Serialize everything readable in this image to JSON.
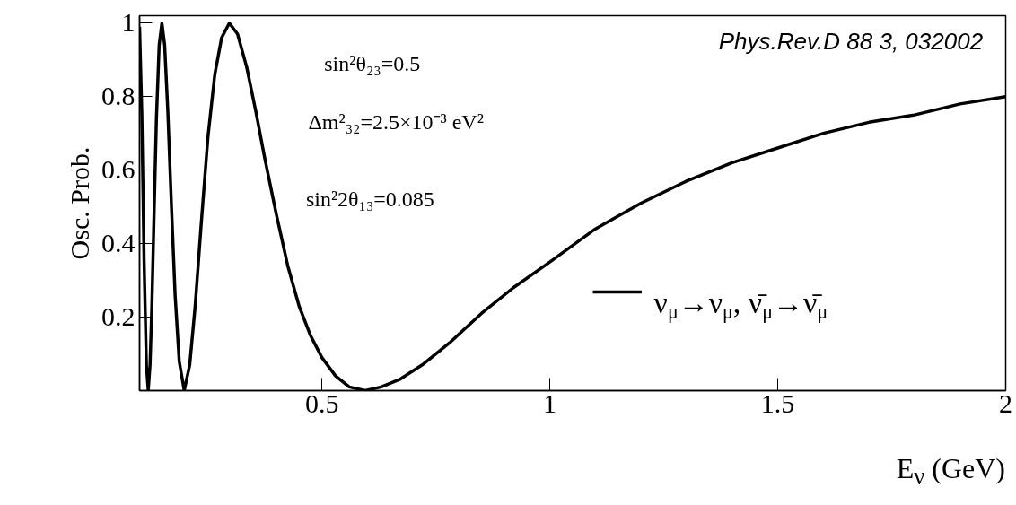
{
  "chart_data": {
    "type": "line",
    "xlabel": "E$_{ν}$ (GeV)",
    "ylabel": "Osc. Prob.",
    "xlim": [
      0.1,
      2
    ],
    "ylim": [
      0,
      1.02
    ],
    "xticks": [
      0.5,
      1,
      1.5,
      2
    ],
    "yticks": [
      {
        "value": 0,
        "label": null
      },
      0.2,
      0.4,
      0.6,
      0.8,
      1
    ],
    "legend": "bottom right",
    "annotations": [
      "sin²θ₂₃=0.5",
      "Δm²₃₂=2.5×10⁻³ eV²",
      "sin²2θ₁₃=0.085",
      "Phys.Rev.D 88 3, 032002"
    ],
    "x": [
      0.1,
      0.105,
      0.11,
      0.115,
      0.119,
      0.123,
      0.127,
      0.132,
      0.137,
      0.143,
      0.149,
      0.155,
      0.162,
      0.17,
      0.178,
      0.187,
      0.198,
      0.21,
      0.222,
      0.235,
      0.25,
      0.265,
      0.28,
      0.297,
      0.315,
      0.335,
      0.355,
      0.375,
      0.4,
      0.425,
      0.45,
      0.475,
      0.5,
      0.53,
      0.56,
      0.595,
      0.63,
      0.67,
      0.72,
      0.78,
      0.85,
      0.92,
      1.0,
      1.1,
      1.2,
      1.3,
      1.4,
      1.5,
      1.6,
      1.7,
      1.8,
      1.9,
      2.0
    ],
    "series": [
      {
        "name": "ν$_{μ}$→ν$_{μ}$, ν̄$_{μ}$→ν̄$_{μ}$",
        "color": "#000000",
        "values": [
          0.99,
          0.75,
          0.35,
          0.07,
          0.0,
          0.07,
          0.23,
          0.49,
          0.74,
          0.94,
          1.0,
          0.94,
          0.76,
          0.5,
          0.26,
          0.08,
          0.0,
          0.07,
          0.23,
          0.45,
          0.69,
          0.86,
          0.96,
          1.0,
          0.97,
          0.88,
          0.76,
          0.63,
          0.48,
          0.34,
          0.23,
          0.15,
          0.09,
          0.04,
          0.01,
          0.0,
          0.01,
          0.03,
          0.07,
          0.13,
          0.21,
          0.28,
          0.35,
          0.44,
          0.51,
          0.57,
          0.62,
          0.66,
          0.7,
          0.73,
          0.75,
          0.78,
          0.8
        ]
      }
    ]
  }
}
